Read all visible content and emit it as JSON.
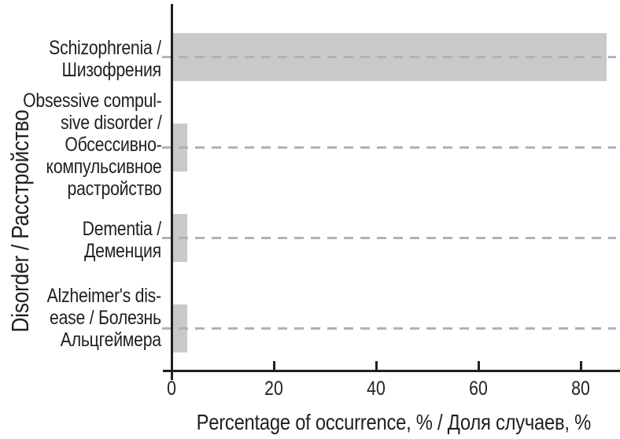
{
  "chart_data": {
    "type": "bar",
    "orientation": "horizontal",
    "title": "",
    "xlabel": "Percentage of occurrence, % / Доля случаев, %",
    "ylabel": "Disorder / Расстройство",
    "xlim": [
      0,
      88
    ],
    "xticks": [
      0,
      20,
      40,
      60,
      80
    ],
    "grid": "dashed horizontal gridline through each category, drawn over bars",
    "legend": "none",
    "categories": [
      "Schizophrenia / Шизофрения",
      "Obsessive compulsive disorder / Обсессивно-компульсивное растройство",
      "Dementia / Деменция",
      "Alzheimer's disease / Болезнь Альцгеймера"
    ],
    "category_label_lines": [
      [
        "Schizophrenia /",
        "Шизофрения"
      ],
      [
        "Obsessive compul-",
        "sive disorder /",
        "Обсессивно-",
        "компульсивное",
        "растройство"
      ],
      [
        "Dementia /",
        "Деменция"
      ],
      [
        "Alzheimer's dis-",
        "ease / Болезнь",
        "Альцгеймера"
      ]
    ],
    "values": [
      85,
      3,
      3,
      3
    ],
    "colors": {
      "bar": "#c9c9cb",
      "grid": "#b2b2b5",
      "axis": "#231f20",
      "text": "#231f20",
      "background": "#ffffff"
    }
  }
}
